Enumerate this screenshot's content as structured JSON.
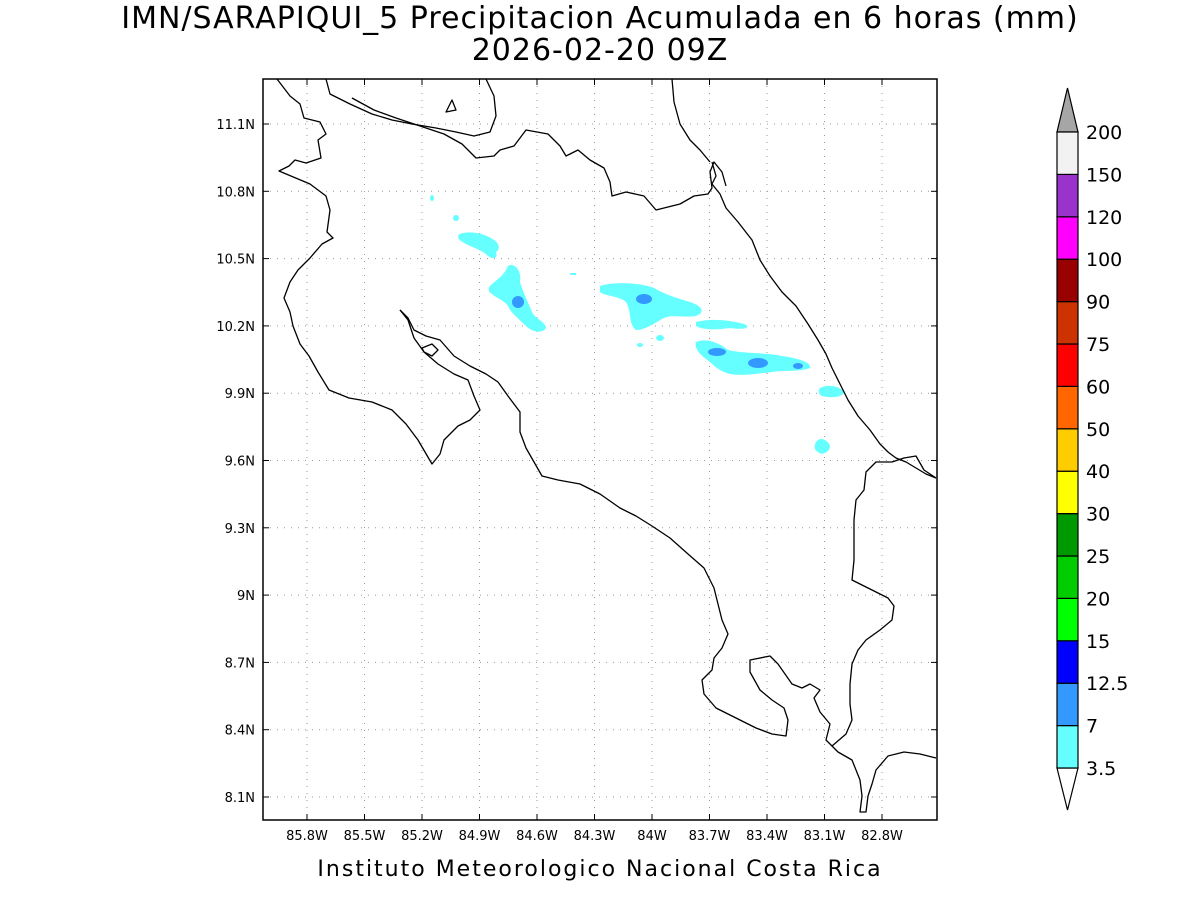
{
  "title": {
    "line1": "IMN/SARAPIQUI_5 Precipitacion Acumulada en 6 horas (mm)",
    "line2": "2026-02-20 09Z"
  },
  "footer": "Instituto Meteorologico Nacional Costa Rica",
  "axes": {
    "lon_ticks": [
      "85.8W",
      "85.5W",
      "85.2W",
      "84.9W",
      "84.6W",
      "84.3W",
      "84W",
      "83.7W",
      "83.4W",
      "83.1W",
      "82.8W"
    ],
    "lat_ticks": [
      "11.1N",
      "10.8N",
      "10.5N",
      "10.2N",
      "9.9N",
      "9.6N",
      "9.3N",
      "9N",
      "8.7N",
      "8.4N",
      "8.1N"
    ],
    "grid": "dotted"
  },
  "colorbar": {
    "levels": [
      "3.5",
      "7",
      "12.5",
      "15",
      "20",
      "25",
      "30",
      "40",
      "50",
      "60",
      "75",
      "90",
      "100",
      "120",
      "150",
      "200"
    ],
    "colors": [
      "#66ffff",
      "#3399ff",
      "#0000ff",
      "#00ff00",
      "#00cc00",
      "#009900",
      "#ffff00",
      "#ffcc00",
      "#ff6600",
      "#ff0000",
      "#cc3300",
      "#990000",
      "#ff00ff",
      "#9933cc",
      "#f2f2f2"
    ],
    "under_color": "#ffffff",
    "over_color": "#a6a6a6"
  },
  "chart_data": {
    "type": "contour-map",
    "variable": "Precipitacion Acumulada en 6 horas",
    "units": "mm",
    "valid_time": "2026-02-20 09Z",
    "lon_range": [
      -86.0,
      -83.0
    ],
    "lat_range": [
      8.0,
      11.3
    ],
    "precip_areas": [
      {
        "name": "band-1",
        "lon": -84.75,
        "lat": 10.6,
        "max_mm": 3.5
      },
      {
        "name": "band-2",
        "lon": -84.6,
        "lat": 10.3,
        "max_mm": 7
      },
      {
        "name": "band-3",
        "lon": -84.0,
        "lat": 10.3,
        "max_mm": 7
      },
      {
        "name": "band-4",
        "lon": -83.45,
        "lat": 10.05,
        "max_mm": 7
      },
      {
        "name": "band-5",
        "lon": -83.05,
        "lat": 9.9,
        "max_mm": 3.5
      },
      {
        "name": "band-6",
        "lon": -83.1,
        "lat": 9.68,
        "max_mm": 3.5
      }
    ]
  }
}
